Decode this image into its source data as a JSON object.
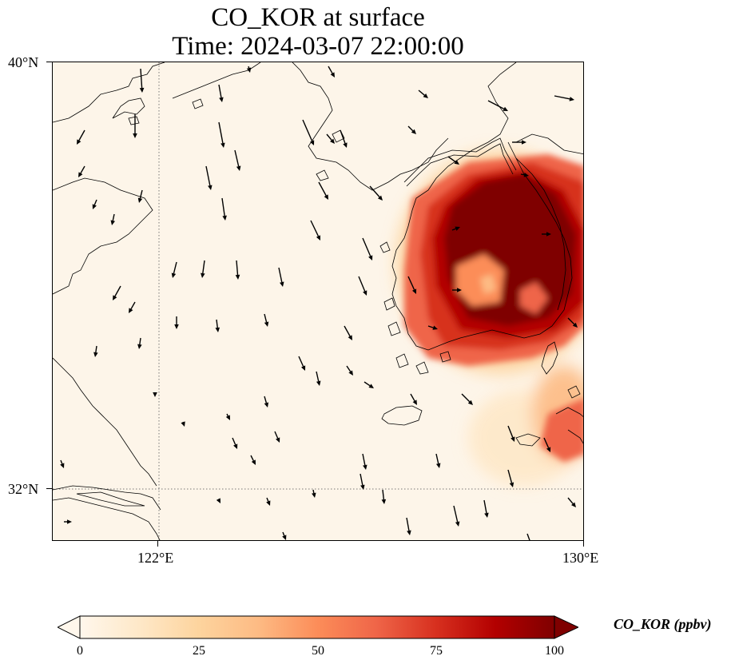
{
  "title": {
    "line1": "CO_KOR at surface",
    "line2": "Time: 2024-03-07 22:00:00"
  },
  "axes": {
    "lon_ticks": [
      "122°E",
      "130°E"
    ],
    "lat_ticks": [
      "40°N",
      "32°N"
    ],
    "lon_range": [
      120,
      130
    ],
    "lat_range": [
      31,
      40
    ]
  },
  "colorbar": {
    "label": "CO_KOR (ppbv)",
    "ticks": [
      "0",
      "25",
      "50",
      "75",
      "100"
    ],
    "min": 0,
    "max": 100,
    "colors": [
      "#fff7ec",
      "#fee8c8",
      "#fdd49e",
      "#fdbb84",
      "#fc8d59",
      "#ef6548",
      "#d7301f",
      "#b30000",
      "#7f0000"
    ]
  },
  "map_data": {
    "variable": "CO_KOR",
    "level": "surface",
    "units": "ppbv",
    "projection": "PlateCarree",
    "gridlines": {
      "lon": [
        122
      ],
      "lat": [
        32
      ],
      "style": "dotted"
    },
    "high_concentration_region": "Korean Peninsula (southern), values ≥100 ppbv",
    "wind_vectors": "southward-dominant wind arrows over Yellow Sea"
  }
}
